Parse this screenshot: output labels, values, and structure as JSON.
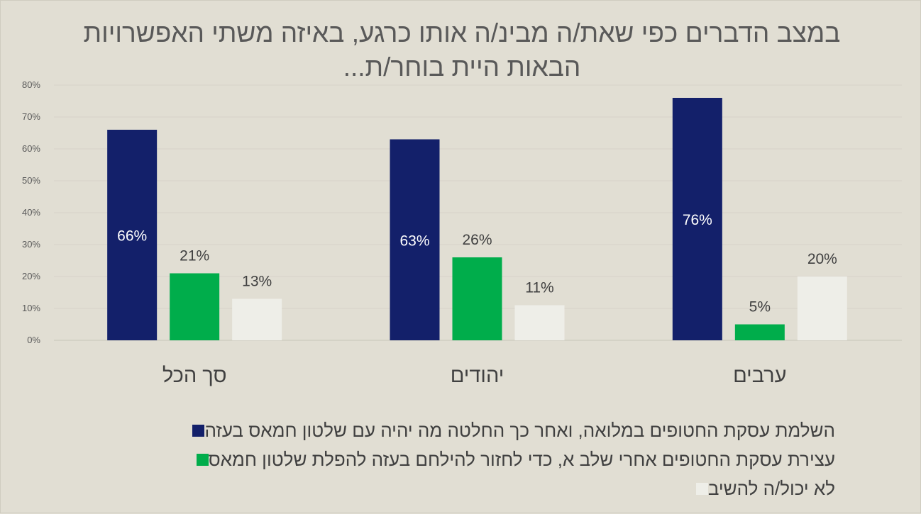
{
  "chart_data": {
    "type": "bar",
    "title": "במצב הדברים כפי שאת/ה מבינ/ה אותו כרגע, באיזה משתי האפשרויות הבאות היית בוחר/ת...",
    "categories": [
      "סך הכל",
      "יהודים",
      "ערבים"
    ],
    "series": [
      {
        "name": "השלמת עסקת החטופים במלואה, ואחר כך החלטה מה יהיה עם שלטון חמאס בעזה",
        "color": "#13206a",
        "values": [
          66,
          63,
          76
        ]
      },
      {
        "name": "עצירת עסקת החטופים אחרי שלב א, כדי לחזור להילחם בעזה להפלת שלטון חמאס",
        "color": "#00ad4b",
        "values": [
          21,
          26,
          5
        ]
      },
      {
        "name": "לא יכול/ה להשיב",
        "color": "#eeeee8",
        "values": [
          13,
          11,
          20
        ]
      }
    ],
    "ylim": [
      0,
      80
    ],
    "yticks": [
      "0%",
      "10%",
      "20%",
      "30%",
      "40%",
      "50%",
      "60%",
      "70%",
      "80%"
    ],
    "grid": true,
    "legend": "bottom",
    "data_label_suffix": "%"
  }
}
